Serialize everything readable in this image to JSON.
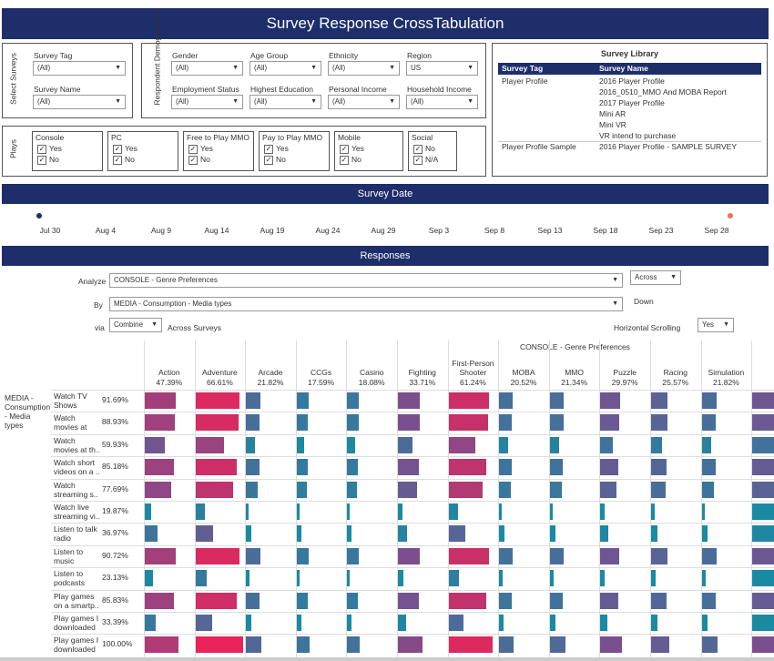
{
  "title": "Survey Response CrossTabulation",
  "select_surveys": {
    "label": "Select Surveys",
    "survey_tag": {
      "label": "Survey Tag",
      "value": "(All)"
    },
    "survey_name": {
      "label": "Survey Name",
      "value": "(All)"
    }
  },
  "demographics": {
    "label": "Respondent Demographics",
    "filters": [
      {
        "label": "Gender",
        "value": "(All)"
      },
      {
        "label": "Age Group",
        "value": "(All)"
      },
      {
        "label": "Ethnicity",
        "value": "(All)"
      },
      {
        "label": "Region",
        "value": "US"
      },
      {
        "label": "Employment Status",
        "value": "(All)"
      },
      {
        "label": "Highest Education",
        "value": "(All)"
      },
      {
        "label": "Personal Income",
        "value": "(All)"
      },
      {
        "label": "Household Income",
        "value": "(All)"
      }
    ]
  },
  "plays": {
    "label": "Plays",
    "groups": [
      {
        "label": "Console",
        "options": [
          "Yes",
          "No"
        ]
      },
      {
        "label": "PC",
        "options": [
          "Yes",
          "No"
        ]
      },
      {
        "label": "Free to Play MMO",
        "options": [
          "Yes",
          "No"
        ]
      },
      {
        "label": "Pay to Play MMO",
        "options": [
          "Yes",
          "No"
        ]
      },
      {
        "label": "Mobile",
        "options": [
          "Yes",
          "No"
        ]
      },
      {
        "label": "Social",
        "options": [
          "No",
          "N/A"
        ]
      }
    ]
  },
  "library": {
    "title": "Survey Library",
    "col_tag": "Survey Tag",
    "col_name": "Survey Name",
    "rows": [
      {
        "tag": "Player Profile",
        "name": "2016 Player Profile"
      },
      {
        "tag": "",
        "name": "2016_0510_MMO And MOBA Report"
      },
      {
        "tag": "",
        "name": "2017 Player Profile"
      },
      {
        "tag": "",
        "name": "Mini AR"
      },
      {
        "tag": "",
        "name": "Mini VR"
      },
      {
        "tag": "",
        "name": "VR intend to purchase"
      },
      {
        "tag": "Player Profile Sample",
        "name": "2016 Player Profile - SAMPLE SURVEY"
      }
    ]
  },
  "survey_date": {
    "title": "Survey Date",
    "ticks": [
      "Jul 30",
      "Aug 4",
      "Aug 9",
      "Aug 14",
      "Aug 19",
      "Aug 24",
      "Aug 29",
      "Sep 3",
      "Sep 8",
      "Sep 13",
      "Sep 18",
      "Sep 23",
      "Sep 28"
    ],
    "start_color": "#1d2e6b",
    "end_color": "#f07050"
  },
  "responses": {
    "title": "Responses",
    "analyze_label": "Analyze",
    "analyze_value": "CONSOLE - Genre Preferences",
    "across_value": "Across",
    "by_label": "By",
    "by_value": "MEDIA - Consumption - Media types",
    "down_label": "Down",
    "via_label": "via",
    "via_value": "Combine",
    "across_surveys_label": "Across Surveys",
    "horizontal_scrolling_label": "Horizontal Scrolling",
    "horizontal_scrolling_value": "Yes"
  },
  "crosstab": {
    "header_title": "CONSOLE - Genre Preferences",
    "row_group_label": "MEDIA - Consumption - Media types",
    "columns": [
      {
        "name": "Action",
        "pct": "47.39%",
        "value": 47.39
      },
      {
        "name": "Adventure",
        "pct": "66.61%",
        "value": 66.61
      },
      {
        "name": "Arcade",
        "pct": "21.82%",
        "value": 21.82
      },
      {
        "name": "CCGs",
        "pct": "17.59%",
        "value": 17.59
      },
      {
        "name": "Casino",
        "pct": "18.08%",
        "value": 18.08
      },
      {
        "name": "Fighting",
        "pct": "33.71%",
        "value": 33.71
      },
      {
        "name": "First-Person Shooter",
        "pct": "61.24%",
        "value": 61.24
      },
      {
        "name": "MOBA",
        "pct": "20.52%",
        "value": 20.52
      },
      {
        "name": "MMO",
        "pct": "21.34%",
        "value": 21.34
      },
      {
        "name": "Puzzle",
        "pct": "29.97%",
        "value": 29.97
      },
      {
        "name": "Racing",
        "pct": "25.57%",
        "value": 25.57
      },
      {
        "name": "Simulation",
        "pct": "21.82%",
        "value": 21.82
      }
    ],
    "rows": [
      {
        "label": "Watch TV Shows",
        "pct": "91.69%",
        "value": 91.69
      },
      {
        "label": "Watch movies at ho..",
        "pct": "88.93%",
        "value": 88.93
      },
      {
        "label": "Watch movies at th..",
        "pct": "59.93%",
        "value": 59.93
      },
      {
        "label": "Watch short videos on a ..",
        "pct": "85.18%",
        "value": 85.18
      },
      {
        "label": "Watch streaming s..",
        "pct": "77.69%",
        "value": 77.69
      },
      {
        "label": "Watch live streaming vi..",
        "pct": "19.87%",
        "value": 19.87
      },
      {
        "label": "Listen to talk radio",
        "pct": "36.97%",
        "value": 36.97
      },
      {
        "label": "Listen to music",
        "pct": "90.72%",
        "value": 90.72
      },
      {
        "label": "Listen to podcasts",
        "pct": "23.13%",
        "value": 23.13
      },
      {
        "label": "Play games on a smartp..",
        "pct": "85.83%",
        "value": 85.83
      },
      {
        "label": "Play games I downloaded ..",
        "pct": "33.39%",
        "value": 33.39
      },
      {
        "label": "Play games I downloaded ..",
        "pct": "100.00%",
        "value": 100.0
      }
    ],
    "color_low": "#1a8aa3",
    "color_mid": "#7a4f8f",
    "color_high": "#e8245a"
  }
}
